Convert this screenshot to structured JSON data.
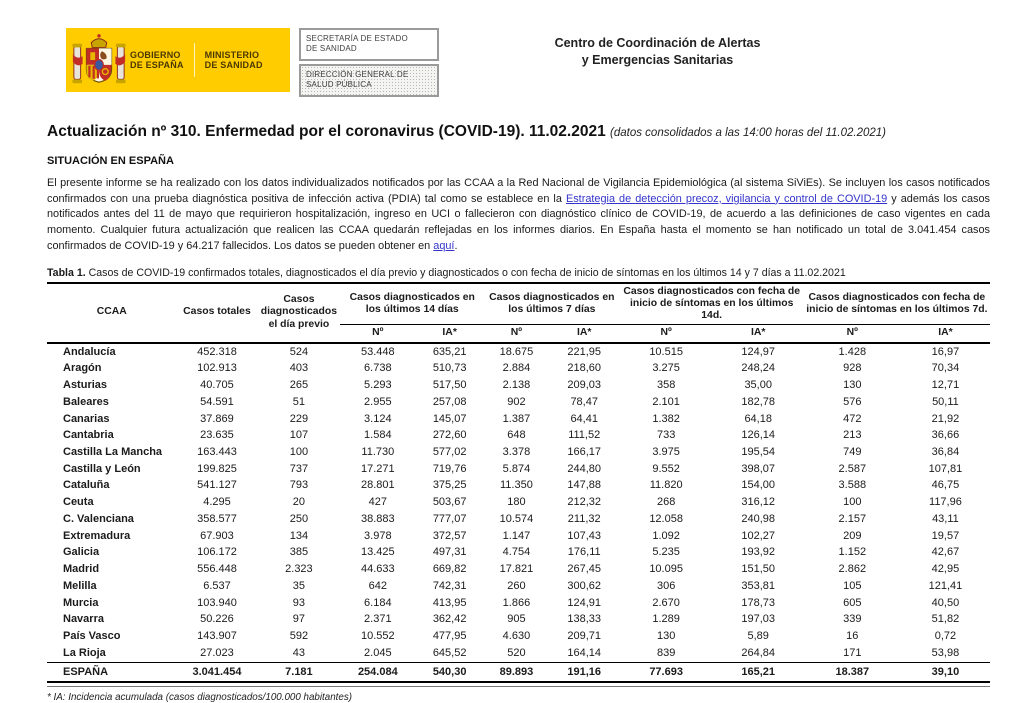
{
  "header": {
    "logo": {
      "government_line1": "GOBIERNO",
      "government_line2": "DE ESPAÑA",
      "ministry_line1": "MINISTERIO",
      "ministry_line2": "DE SANIDAD",
      "background_color": "#ffcc00"
    },
    "dept_box1_line1": "SECRETARÍA DE ESTADO",
    "dept_box1_line2": "DE SANIDAD",
    "dept_box2_line1": "DIRECCIÓN GENERAL DE",
    "dept_box2_line2": "SALUD PÚBLICA",
    "center_title_line1": "Centro de Coordinación de Alertas",
    "center_title_line2": "y Emergencias Sanitarias"
  },
  "title": {
    "main": "Actualización nº 310. Enfermedad por el coronavirus (COVID-19). 11.02.2021",
    "note": "(datos consolidados a las 14:00 horas del 11.02.2021)"
  },
  "situation_heading": "SITUACIÓN EN ESPAÑA",
  "intro": {
    "part1": "El presente informe se ha realizado con los datos individualizados notificados por las CCAA a la Red Nacional de Vigilancia Epidemiológica (al sistema SiViEs). Se incluyen los casos notificados confirmados con una prueba diagnóstica positiva de infección activa (PDIA) tal como se establece en la ",
    "link1": "Estrategia de detección precoz, vigilancia y control de COVID-19",
    "part2": " y además los casos notificados antes del 11 de mayo que requirieron hospitalización, ingreso en UCI o fallecieron con diagnóstico clínico de COVID-19, de acuerdo a las definiciones de caso vigentes en cada momento. Cualquier futura actualización que realicen las CCAA quedarán reflejadas en los informes diarios. En España hasta el momento se han notificado un total de 3.041.454 casos confirmados de COVID-19 y 64.217 fallecidos. Los datos se pueden obtener en ",
    "link2": "aquí",
    "part3": ".",
    "link_color": "#3434cc"
  },
  "table": {
    "caption_label": "Tabla 1.",
    "caption_text": "Casos de COVID-19 confirmados totales, diagnosticados el día previo y diagnosticados o con fecha de inicio de síntomas en los últimos 14 y 7 días a 11.02.2021",
    "col_ccaa": "CCAA",
    "col_totales": "Casos totales",
    "col_previo": "Casos diagnosticados el día previo",
    "group_14d": "Casos diagnosticados en los últimos 14 días",
    "group_7d": "Casos diagnosticados en los últimos 7 días",
    "group_sint_14d": "Casos diagnosticados con fecha de inicio de síntomas en los últimos 14d.",
    "group_sint_7d": "Casos diagnosticados con fecha de inicio de síntomas en los últimos 7d.",
    "sub_n": "Nº",
    "sub_ia": "IA*",
    "rows": [
      [
        "Andalucía",
        "452.318",
        "524",
        "53.448",
        "635,21",
        "18.675",
        "221,95",
        "10.515",
        "124,97",
        "1.428",
        "16,97"
      ],
      [
        "Aragón",
        "102.913",
        "403",
        "6.738",
        "510,73",
        "2.884",
        "218,60",
        "3.275",
        "248,24",
        "928",
        "70,34"
      ],
      [
        "Asturias",
        "40.705",
        "265",
        "5.293",
        "517,50",
        "2.138",
        "209,03",
        "358",
        "35,00",
        "130",
        "12,71"
      ],
      [
        "Baleares",
        "54.591",
        "51",
        "2.955",
        "257,08",
        "902",
        "78,47",
        "2.101",
        "182,78",
        "576",
        "50,11"
      ],
      [
        "Canarias",
        "37.869",
        "229",
        "3.124",
        "145,07",
        "1.387",
        "64,41",
        "1.382",
        "64,18",
        "472",
        "21,92"
      ],
      [
        "Cantabria",
        "23.635",
        "107",
        "1.584",
        "272,60",
        "648",
        "111,52",
        "733",
        "126,14",
        "213",
        "36,66"
      ],
      [
        "Castilla La Mancha",
        "163.443",
        "100",
        "11.730",
        "577,02",
        "3.378",
        "166,17",
        "3.975",
        "195,54",
        "749",
        "36,84"
      ],
      [
        "Castilla y León",
        "199.825",
        "737",
        "17.271",
        "719,76",
        "5.874",
        "244,80",
        "9.552",
        "398,07",
        "2.587",
        "107,81"
      ],
      [
        "Cataluña",
        "541.127",
        "793",
        "28.801",
        "375,25",
        "11.350",
        "147,88",
        "11.820",
        "154,00",
        "3.588",
        "46,75"
      ],
      [
        "Ceuta",
        "4.295",
        "20",
        "427",
        "503,67",
        "180",
        "212,32",
        "268",
        "316,12",
        "100",
        "117,96"
      ],
      [
        "C. Valenciana",
        "358.577",
        "250",
        "38.883",
        "777,07",
        "10.574",
        "211,32",
        "12.058",
        "240,98",
        "2.157",
        "43,11"
      ],
      [
        "Extremadura",
        "67.903",
        "134",
        "3.978",
        "372,57",
        "1.147",
        "107,43",
        "1.092",
        "102,27",
        "209",
        "19,57"
      ],
      [
        "Galicia",
        "106.172",
        "385",
        "13.425",
        "497,31",
        "4.754",
        "176,11",
        "5.235",
        "193,92",
        "1.152",
        "42,67"
      ],
      [
        "Madrid",
        "556.448",
        "2.323",
        "44.633",
        "669,82",
        "17.821",
        "267,45",
        "10.095",
        "151,50",
        "2.862",
        "42,95"
      ],
      [
        "Melilla",
        "6.537",
        "35",
        "642",
        "742,31",
        "260",
        "300,62",
        "306",
        "353,81",
        "105",
        "121,41"
      ],
      [
        "Murcia",
        "103.940",
        "93",
        "6.184",
        "413,95",
        "1.866",
        "124,91",
        "2.670",
        "178,73",
        "605",
        "40,50"
      ],
      [
        "Navarra",
        "50.226",
        "97",
        "2.371",
        "362,42",
        "905",
        "138,33",
        "1.289",
        "197,03",
        "339",
        "51,82"
      ],
      [
        "País Vasco",
        "143.907",
        "592",
        "10.552",
        "477,95",
        "4.630",
        "209,71",
        "130",
        "5,89",
        "16",
        "0,72"
      ],
      [
        "La Rioja",
        "27.023",
        "43",
        "2.045",
        "645,52",
        "520",
        "164,14",
        "839",
        "264,84",
        "171",
        "53,98"
      ]
    ],
    "total_row": [
      "ESPAÑA",
      "3.041.454",
      "7.181",
      "254.084",
      "540,30",
      "89.893",
      "191,16",
      "77.693",
      "165,21",
      "18.387",
      "39,10"
    ]
  },
  "footnote": "* IA: Incidencia acumulada (casos diagnosticados/100.000 habitantes)"
}
